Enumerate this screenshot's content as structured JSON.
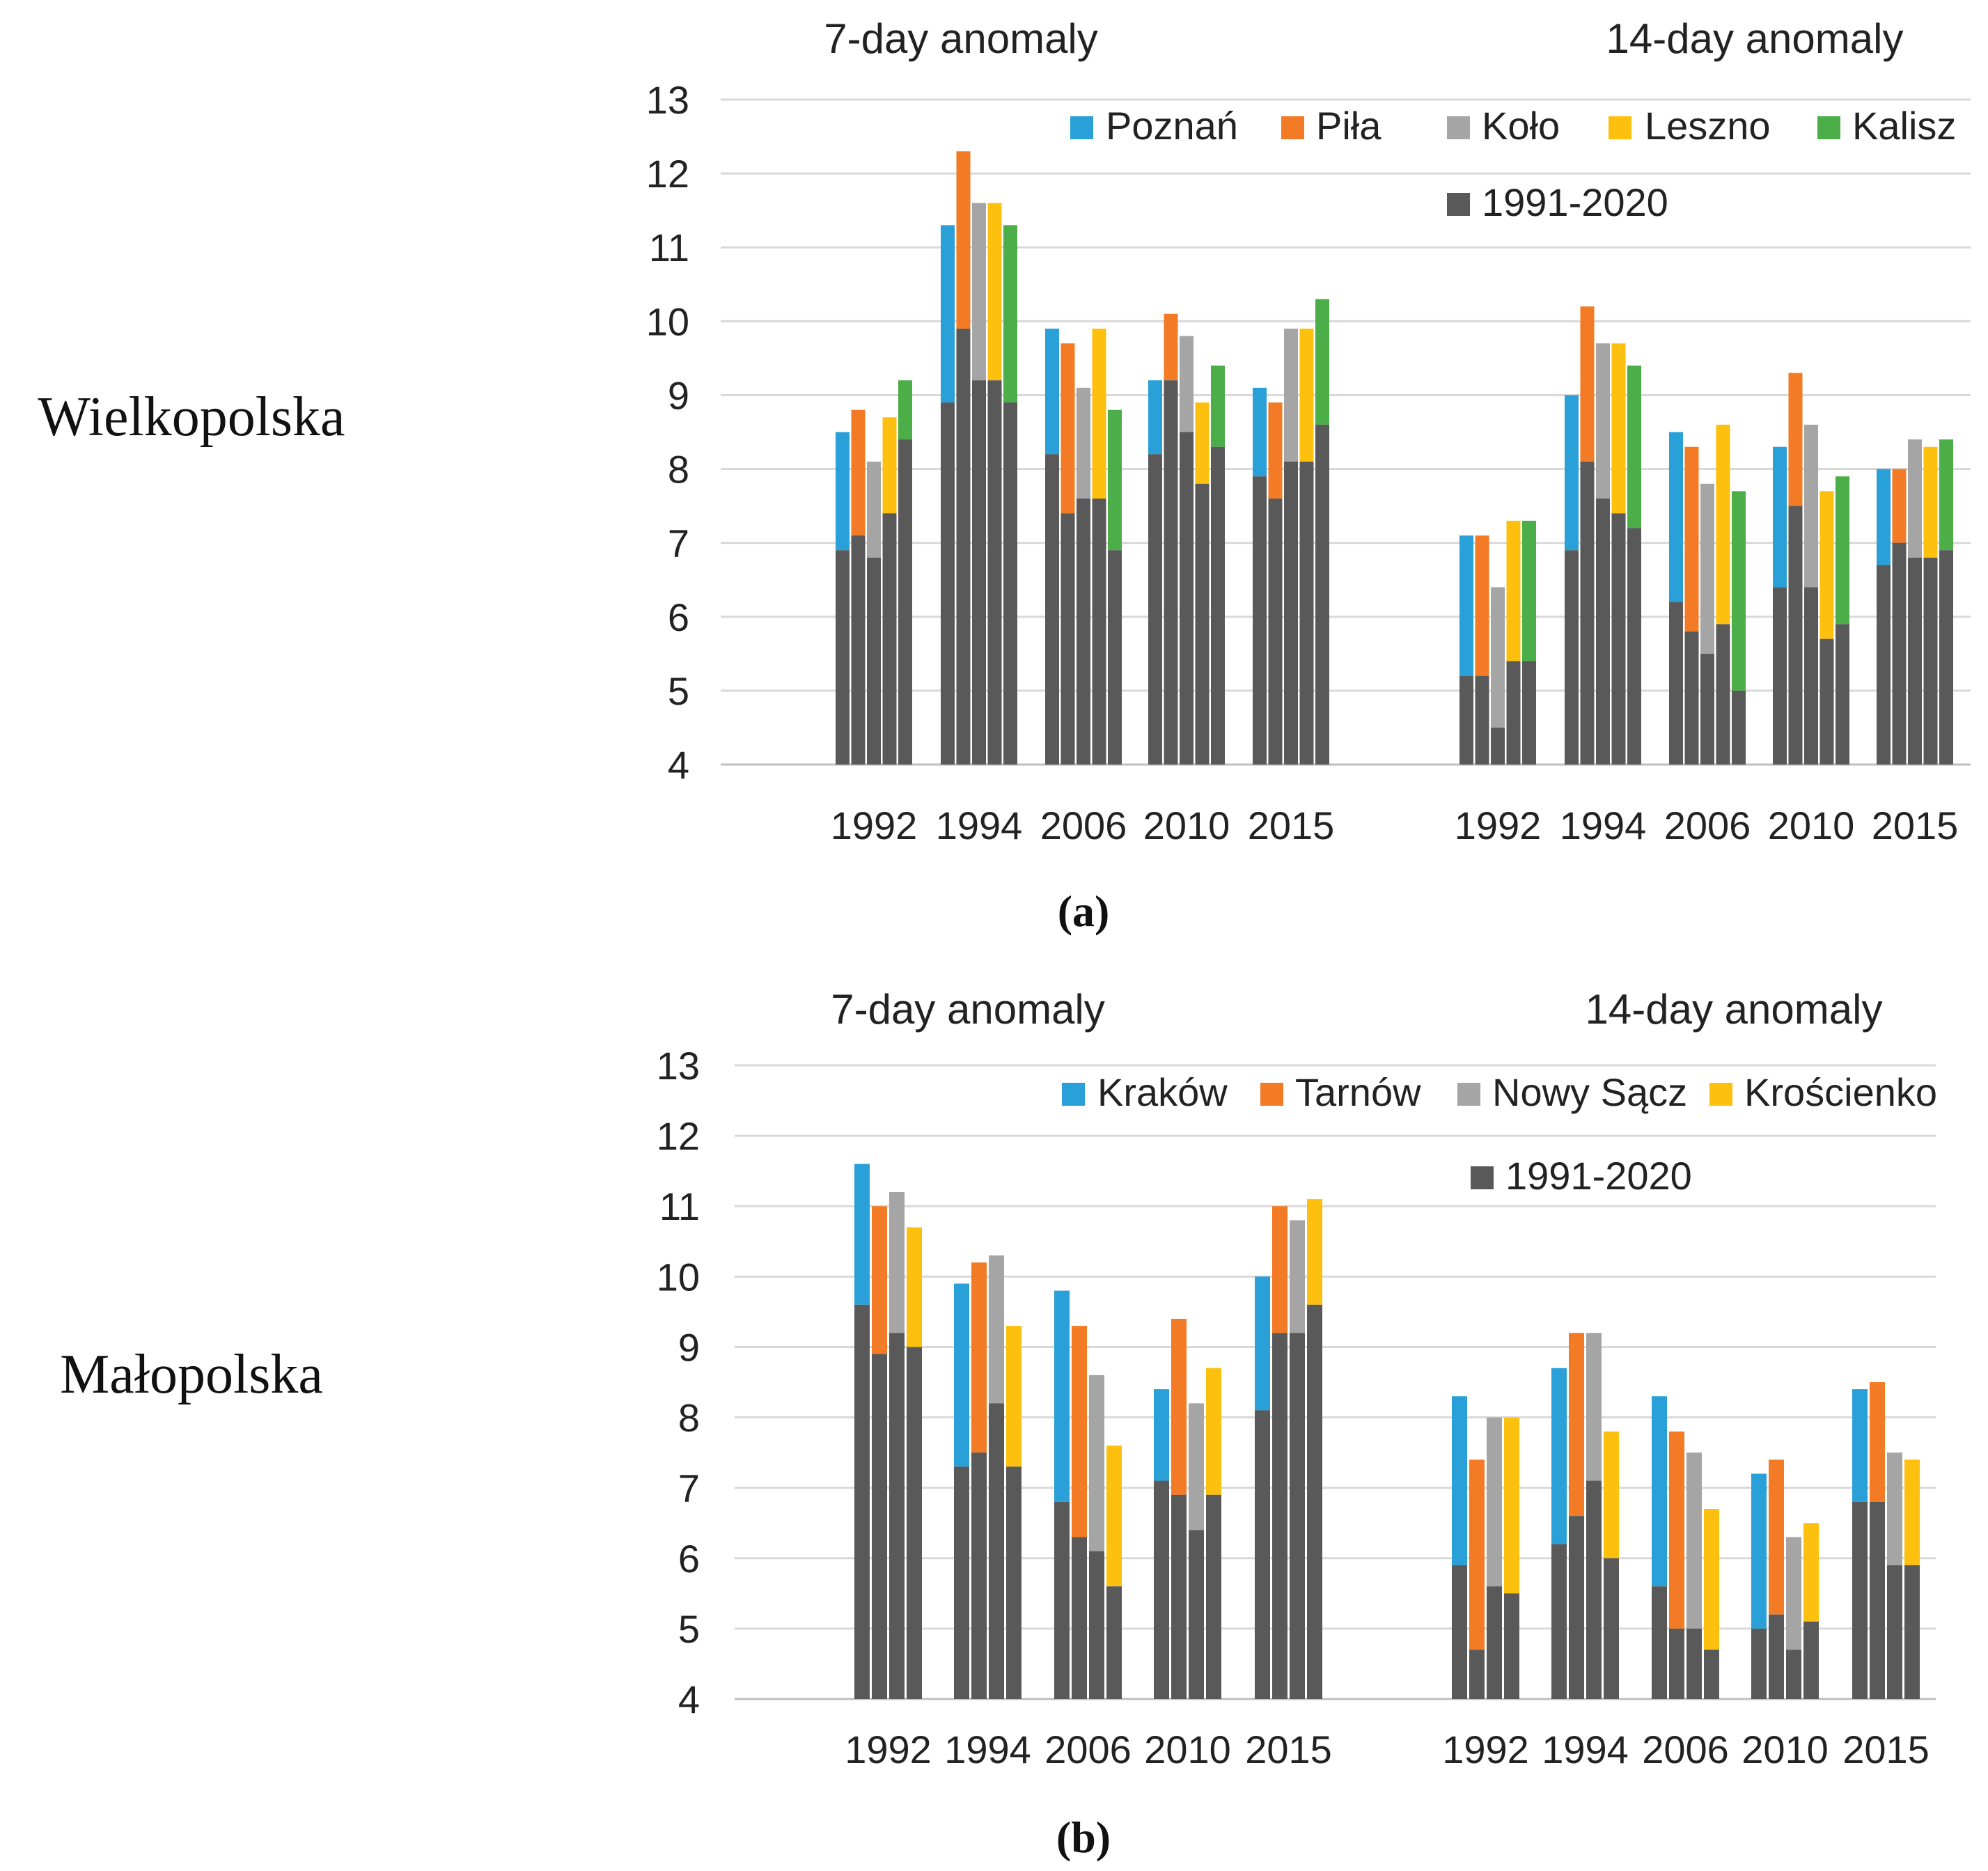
{
  "colors": {
    "Poznań": "#2aa0d8",
    "Piła": "#f47b26",
    "Koło": "#a5a5a5",
    "Leszno": "#fdc00f",
    "Kalisz": "#4cae48",
    "Kraków": "#2aa0d8",
    "Tarnów": "#f47b26",
    "Nowy Sącz": "#a5a5a5",
    "Krościenko": "#fdc00f",
    "base": "#595959"
  },
  "chart_data": [
    {
      "type": "bar",
      "region": "Wielkopolska",
      "caption": "(a)",
      "ylim": [
        4,
        13
      ],
      "yticks": [
        4,
        5,
        6,
        7,
        8,
        9,
        10,
        11,
        12,
        13
      ],
      "stations": [
        "Poznań",
        "Piła",
        "Koło",
        "Leszno",
        "Kalisz"
      ],
      "legend": [
        "Poznań",
        "Piła",
        "Koło",
        "Leszno",
        "Kalisz",
        "1991-2020"
      ],
      "panels": [
        {
          "title": "7-day anomaly",
          "categories": [
            "1992",
            "1994",
            "2006",
            "2010",
            "2015"
          ],
          "series": [
            {
              "name": "Poznań",
              "baseline_1991_2020": [
                6.9,
                8.9,
                8.2,
                8.2,
                7.9
              ],
              "anomaly": [
                8.5,
                11.3,
                9.9,
                9.2,
                9.1
              ]
            },
            {
              "name": "Piła",
              "baseline_1991_2020": [
                7.1,
                9.9,
                7.4,
                9.2,
                7.6
              ],
              "anomaly": [
                8.8,
                12.3,
                9.7,
                10.1,
                8.9
              ]
            },
            {
              "name": "Koło",
              "baseline_1991_2020": [
                6.8,
                9.2,
                7.6,
                8.5,
                8.1
              ],
              "anomaly": [
                8.1,
                11.6,
                9.1,
                9.8,
                9.9
              ]
            },
            {
              "name": "Leszno",
              "baseline_1991_2020": [
                7.4,
                9.2,
                7.6,
                7.8,
                8.1
              ],
              "anomaly": [
                8.7,
                11.6,
                9.9,
                8.9,
                9.9
              ]
            },
            {
              "name": "Kalisz",
              "baseline_1991_2020": [
                8.4,
                8.9,
                6.9,
                8.3,
                8.6
              ],
              "anomaly": [
                9.2,
                11.3,
                8.8,
                9.4,
                10.3
              ]
            }
          ]
        },
        {
          "title": "14-day anomaly",
          "categories": [
            "1992",
            "1994",
            "2006",
            "2010",
            "2015"
          ],
          "series": [
            {
              "name": "Poznań",
              "baseline_1991_2020": [
                5.2,
                6.9,
                6.2,
                6.4,
                6.7
              ],
              "anomaly": [
                7.1,
                9.0,
                8.5,
                8.3,
                8.0
              ]
            },
            {
              "name": "Piła",
              "baseline_1991_2020": [
                5.2,
                8.1,
                5.8,
                7.5,
                7.0
              ],
              "anomaly": [
                7.1,
                10.2,
                8.3,
                9.3,
                8.0
              ]
            },
            {
              "name": "Koło",
              "baseline_1991_2020": [
                4.5,
                7.6,
                5.5,
                6.4,
                6.8
              ],
              "anomaly": [
                6.4,
                9.7,
                7.8,
                8.6,
                8.4
              ]
            },
            {
              "name": "Leszno",
              "baseline_1991_2020": [
                5.4,
                7.4,
                5.9,
                5.7,
                6.8
              ],
              "anomaly": [
                7.3,
                9.7,
                8.6,
                7.7,
                8.3
              ]
            },
            {
              "name": "Kalisz",
              "baseline_1991_2020": [
                5.4,
                7.2,
                5.0,
                5.9,
                6.9
              ],
              "anomaly": [
                7.3,
                9.4,
                7.7,
                7.9,
                8.4
              ]
            }
          ]
        }
      ]
    },
    {
      "type": "bar",
      "region": "Małopolska",
      "caption": "(b)",
      "ylim": [
        4,
        13
      ],
      "yticks": [
        4,
        5,
        6,
        7,
        8,
        9,
        10,
        11,
        12,
        13
      ],
      "stations": [
        "Kraków",
        "Tarnów",
        "Nowy Sącz",
        "Krościenko"
      ],
      "legend": [
        "Kraków",
        "Tarnów",
        "Nowy Sącz",
        "Krościenko",
        "1991-2020"
      ],
      "panels": [
        {
          "title": "7-day anomaly",
          "categories": [
            "1992",
            "1994",
            "2006",
            "2010",
            "2015"
          ],
          "series": [
            {
              "name": "Kraków",
              "baseline_1991_2020": [
                9.6,
                7.3,
                6.8,
                7.1,
                8.1
              ],
              "anomaly": [
                11.6,
                9.9,
                9.8,
                8.4,
                10.0
              ]
            },
            {
              "name": "Tarnów",
              "baseline_1991_2020": [
                8.9,
                7.5,
                6.3,
                6.9,
                9.2
              ],
              "anomaly": [
                11.0,
                10.2,
                9.3,
                9.4,
                11.0
              ]
            },
            {
              "name": "Nowy Sącz",
              "baseline_1991_2020": [
                9.2,
                8.2,
                6.1,
                6.4,
                9.2
              ],
              "anomaly": [
                11.2,
                10.3,
                8.6,
                8.2,
                10.8
              ]
            },
            {
              "name": "Krościenko",
              "baseline_1991_2020": [
                9.0,
                7.3,
                5.6,
                6.9,
                9.6
              ],
              "anomaly": [
                10.7,
                9.3,
                7.6,
                8.7,
                11.1
              ]
            }
          ]
        },
        {
          "title": "14-day anomaly",
          "categories": [
            "1992",
            "1994",
            "2006",
            "2010",
            "2015"
          ],
          "series": [
            {
              "name": "Kraków",
              "baseline_1991_2020": [
                5.9,
                6.2,
                5.6,
                5.0,
                6.8
              ],
              "anomaly": [
                8.3,
                8.7,
                8.3,
                7.2,
                8.4
              ]
            },
            {
              "name": "Tarnów",
              "baseline_1991_2020": [
                4.7,
                6.6,
                5.0,
                5.2,
                6.8
              ],
              "anomaly": [
                7.4,
                9.2,
                7.8,
                7.4,
                8.5
              ]
            },
            {
              "name": "Nowy Sącz",
              "baseline_1991_2020": [
                5.6,
                7.1,
                5.0,
                4.7,
                5.9
              ],
              "anomaly": [
                8.0,
                9.2,
                7.5,
                6.3,
                7.5
              ]
            },
            {
              "name": "Krościenko",
              "baseline_1991_2020": [
                5.5,
                6.0,
                4.7,
                5.1,
                5.9
              ],
              "anomaly": [
                8.0,
                7.8,
                6.7,
                6.5,
                7.4
              ]
            }
          ]
        }
      ]
    }
  ]
}
